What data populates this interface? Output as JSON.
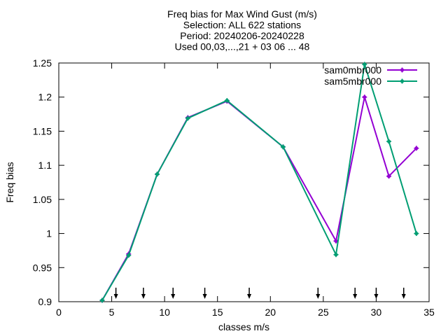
{
  "chart_data": {
    "type": "line",
    "title_lines": [
      "Freq bias  for Max Wind Gust (m/s)",
      "Selection: ALL    622 stations",
      "Period: 20240206-20240228",
      "Used 00,03,...,21 + 03 06 ... 48"
    ],
    "xlabel": "classes m/s",
    "ylabel": "Freq bias",
    "xlim": [
      0,
      35
    ],
    "ylim": [
      0.9,
      1.25
    ],
    "xticks": [
      0,
      5,
      10,
      15,
      20,
      25,
      30,
      35
    ],
    "xtick_labels": [
      "0",
      "5",
      "10",
      "15",
      "20",
      "25",
      "30",
      "35"
    ],
    "yticks": [
      0.9,
      0.95,
      1.0,
      1.05,
      1.1,
      1.15,
      1.2,
      1.25
    ],
    "ytick_labels": [
      "0.9",
      "0.95",
      "1",
      "1.05",
      "1.1",
      "1.15",
      "1.2",
      "1.25"
    ],
    "grid": false,
    "legend_position": "top-right",
    "series": [
      {
        "name": "sam0mbr000",
        "color": "#9400d3",
        "x": [
          4.1,
          6.6,
          9.3,
          12.2,
          15.9,
          21.2,
          26.2,
          28.9,
          31.2,
          33.8
        ],
        "values": [
          0.902,
          0.97,
          1.087,
          1.17,
          1.194,
          1.127,
          0.989,
          1.2,
          1.084,
          1.125
        ]
      },
      {
        "name": "sam5mbr000",
        "color": "#009e73",
        "x": [
          4.1,
          6.6,
          9.3,
          12.2,
          15.9,
          21.2,
          26.2,
          28.9,
          31.2,
          33.8
        ],
        "values": [
          0.902,
          0.968,
          1.087,
          1.169,
          1.195,
          1.127,
          0.969,
          1.248,
          1.135,
          1.0
        ]
      }
    ],
    "arrow_markers_x": [
      5.4,
      8.0,
      10.8,
      13.8,
      18.0,
      24.5,
      28.0,
      30.0,
      32.6
    ]
  }
}
